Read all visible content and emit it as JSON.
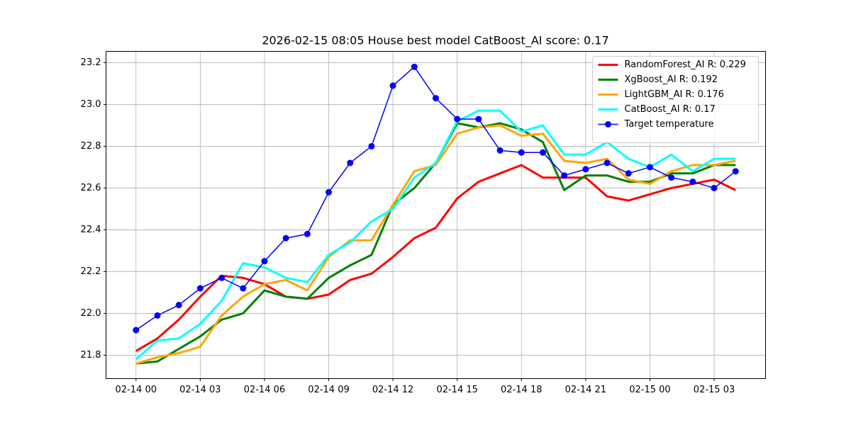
{
  "chart_data": {
    "type": "line",
    "title": "2026-02-15 08:05 House best model CatBoost_AI score: 0.17",
    "x": [
      "02-14 00",
      "02-14 01",
      "02-14 02",
      "02-14 03",
      "02-14 04",
      "02-14 05",
      "02-14 06",
      "02-14 07",
      "02-14 08",
      "02-14 09",
      "02-14 10",
      "02-14 11",
      "02-14 12",
      "02-14 13",
      "02-14 14",
      "02-14 15",
      "02-14 16",
      "02-14 17",
      "02-14 18",
      "02-14 19",
      "02-14 20",
      "02-14 21",
      "02-14 22",
      "02-14 23",
      "02-15 00",
      "02-15 01",
      "02-15 02",
      "02-15 03",
      "02-15 04"
    ],
    "xticks": [
      "02-14 00",
      "02-14 03",
      "02-14 06",
      "02-14 09",
      "02-14 12",
      "02-14 15",
      "02-14 18",
      "02-14 21",
      "02-15 00",
      "02-15 03"
    ],
    "ylim": [
      21.688,
      23.254
    ],
    "yticks": [
      21.8,
      {
        "value": 22,
        "label": "22.0"
      },
      22.2,
      22.4,
      22.6,
      22.8,
      {
        "value": 23,
        "label": "23.0"
      },
      23.2
    ],
    "grid": true,
    "legend": "upper right",
    "series": [
      {
        "name": "RandomForest_AI R: 0.229",
        "color": "#ff0000",
        "linewidth": 3,
        "values": [
          21.82,
          21.88,
          21.97,
          22.08,
          22.18,
          22.17,
          22.14,
          22.08,
          22.07,
          22.09,
          22.16,
          22.19,
          22.27,
          22.36,
          22.41,
          22.55,
          22.63,
          22.67,
          22.71,
          22.65,
          22.65,
          22.65,
          22.56,
          22.54,
          22.57,
          22.6,
          22.62,
          22.64,
          22.59
        ]
      },
      {
        "name": "XgBoost_AI R: 0.192",
        "color": "#008000",
        "linewidth": 3,
        "values": [
          21.76,
          21.77,
          21.83,
          21.89,
          21.97,
          22.0,
          22.11,
          22.08,
          22.07,
          22.17,
          22.23,
          22.28,
          22.52,
          22.6,
          22.72,
          22.91,
          22.89,
          22.91,
          22.88,
          22.82,
          22.59,
          22.66,
          22.66,
          22.63,
          22.63,
          22.67,
          22.67,
          22.71,
          22.71
        ]
      },
      {
        "name": "LightGBM_AI R: 0.176",
        "color": "#ffa500",
        "linewidth": 3,
        "values": [
          21.76,
          21.79,
          21.81,
          21.84,
          21.99,
          22.08,
          22.14,
          22.16,
          22.11,
          22.27,
          22.35,
          22.35,
          22.52,
          22.68,
          22.71,
          22.86,
          22.89,
          22.9,
          22.85,
          22.86,
          22.73,
          22.72,
          22.74,
          22.64,
          22.62,
          22.68,
          22.71,
          22.71,
          22.73
        ]
      },
      {
        "name": "CatBoost_AI R: 0.17",
        "color": "#00ffff",
        "linewidth": 3,
        "values": [
          21.78,
          21.87,
          21.88,
          21.95,
          22.06,
          22.24,
          22.22,
          22.17,
          22.15,
          22.28,
          22.34,
          22.44,
          22.5,
          22.65,
          22.72,
          22.92,
          22.97,
          22.97,
          22.87,
          22.9,
          22.76,
          22.76,
          22.82,
          22.74,
          22.7,
          22.76,
          22.68,
          22.74,
          22.74
        ]
      },
      {
        "name": "Target temperature",
        "color": "#0000ff",
        "linewidth": 1.5,
        "marker": "o",
        "values": [
          21.92,
          21.99,
          22.04,
          22.12,
          22.17,
          22.12,
          22.25,
          22.36,
          22.38,
          22.58,
          22.72,
          22.8,
          23.09,
          23.18,
          23.03,
          22.93,
          22.93,
          22.78,
          22.77,
          22.77,
          22.66,
          22.69,
          22.72,
          22.67,
          22.7,
          22.65,
          22.63,
          22.6,
          22.68
        ]
      }
    ]
  }
}
